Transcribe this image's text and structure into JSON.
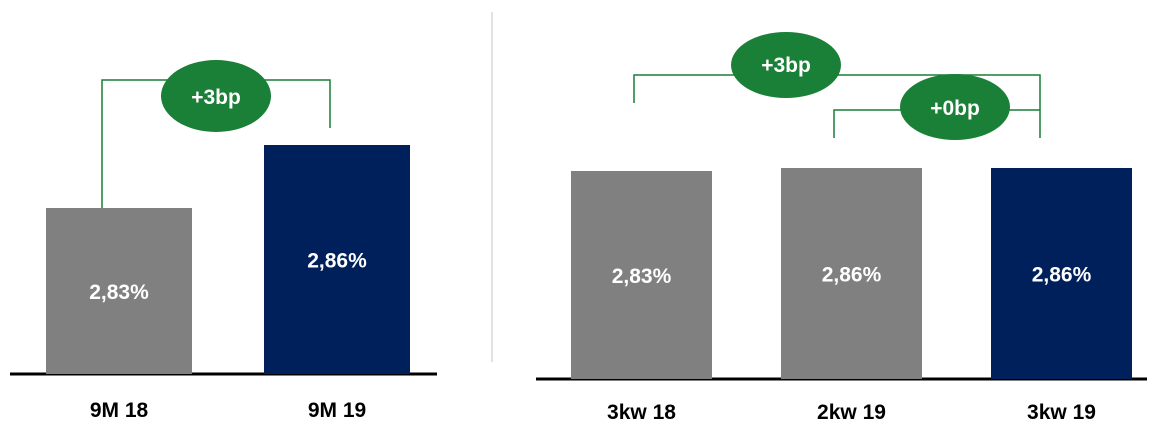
{
  "colors": {
    "gray": "#808080",
    "navy": "#00205b",
    "green": "#1a7f37",
    "axis": "#000000",
    "divider": "#d9d9d9"
  },
  "chart_data": [
    {
      "type": "bar",
      "categories": [
        "9M 18",
        "9M 19"
      ],
      "values": [
        2.83,
        2.86
      ],
      "value_labels": [
        "2,83%",
        "2,86%"
      ],
      "bar_colors": [
        "#808080",
        "#00205b"
      ],
      "deltas": [
        {
          "from": "9M 18",
          "to": "9M 19",
          "label": "+3bp"
        }
      ]
    },
    {
      "type": "bar",
      "categories": [
        "3kw 18",
        "2kw 19",
        "3kw 19"
      ],
      "values": [
        2.83,
        2.86,
        2.86
      ],
      "value_labels": [
        "2,83%",
        "2,86%",
        "2,86%"
      ],
      "bar_colors": [
        "#808080",
        "#808080",
        "#00205b"
      ],
      "deltas": [
        {
          "from": "3kw 18",
          "to": "3kw 19",
          "label": "+3bp"
        },
        {
          "from": "2kw 19",
          "to": "3kw 19",
          "label": "+0bp"
        }
      ]
    }
  ]
}
